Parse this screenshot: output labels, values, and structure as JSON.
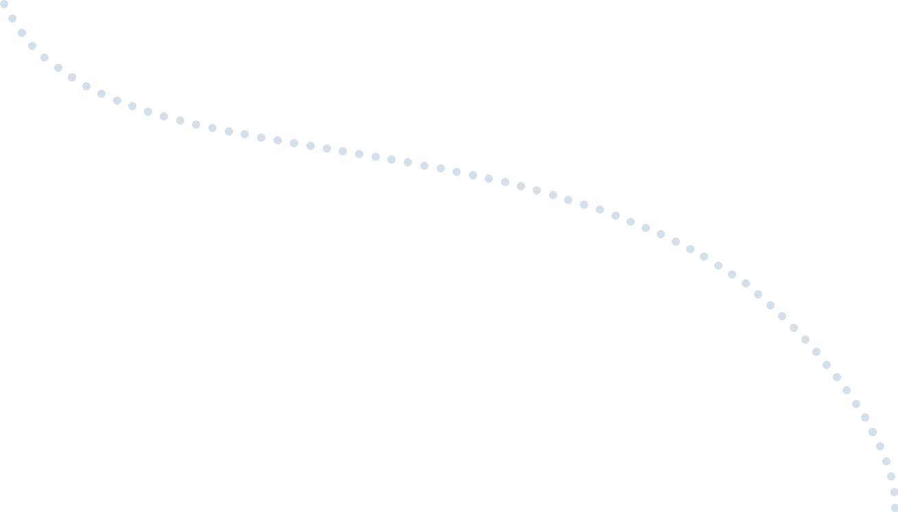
{
  "decoration": {
    "type": "dotted-curve",
    "dot_color": "#d3e0ec",
    "background_color": "#ffffff"
  }
}
